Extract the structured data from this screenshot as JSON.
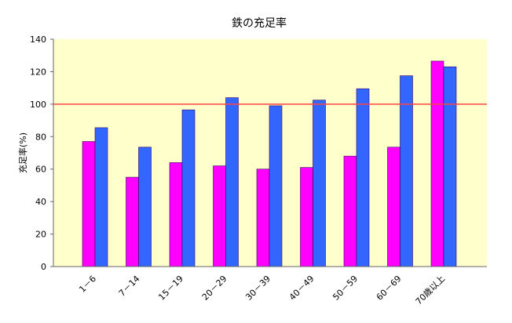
{
  "chart_data": {
    "type": "bar",
    "title": "鉄の充足率",
    "xlabel": "",
    "ylabel": "充足率(%)",
    "ylim": [
      0,
      140
    ],
    "yticks": [
      0,
      20,
      40,
      60,
      80,
      100,
      120,
      140
    ],
    "grid": false,
    "legend": "none",
    "background": "#ffffcc",
    "reference_line": {
      "value": 100,
      "color": "#ff4444"
    },
    "categories": [
      "1－6",
      "7－14",
      "15－19",
      "20－29",
      "30－39",
      "40－49",
      "50－59",
      "60－69",
      "70歳以上"
    ],
    "series": [
      {
        "color": "#ff00ff",
        "values": [
          77,
          55,
          64,
          62,
          60,
          61,
          68,
          73.5,
          126.5
        ]
      },
      {
        "color": "#3366ff",
        "values": [
          85.5,
          73.5,
          96.5,
          104,
          99,
          102.5,
          109.5,
          117.5,
          123
        ]
      }
    ]
  }
}
